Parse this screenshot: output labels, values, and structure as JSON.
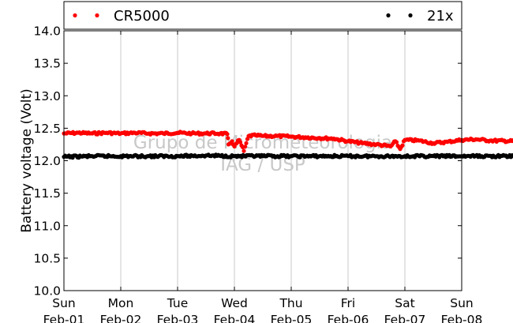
{
  "chart_data": {
    "type": "scatter",
    "ylabel": "Battery voltage (Volt)",
    "ylim": [
      10.0,
      14.0
    ],
    "yticks": [
      "10.0",
      "10.5",
      "11.0",
      "11.5",
      "12.0",
      "12.5",
      "13.0",
      "13.5",
      "14.0"
    ],
    "xlim": [
      "2009-02-01",
      "2009-02-08"
    ],
    "xticks": [
      {
        "day": "Sun",
        "date": "Feb-01"
      },
      {
        "day": "Mon",
        "date": "Feb-02"
      },
      {
        "day": "Tue",
        "date": "Feb-03"
      },
      {
        "day": "Wed",
        "date": "Feb-04"
      },
      {
        "day": "Thu",
        "date": "Feb-05"
      },
      {
        "day": "Fri",
        "date": "Feb-06"
      },
      {
        "day": "Sat",
        "date": "Feb-07"
      },
      {
        "day": "Sun",
        "date": "Feb-08"
      }
    ],
    "grid": "vertical",
    "legend_placement": "top",
    "watermark": [
      "Grupo de Micrometeorologia",
      "IAG / USP"
    ],
    "series": [
      {
        "name": "CR5000",
        "color": "#ff0000",
        "points": [
          [
            "2009-02-01 00:00",
            12.42
          ],
          [
            "2009-02-01 06:00",
            12.43
          ],
          [
            "2009-02-01 12:00",
            12.42
          ],
          [
            "2009-02-01 18:00",
            12.43
          ],
          [
            "2009-02-02 00:00",
            12.42
          ],
          [
            "2009-02-02 06:00",
            12.43
          ],
          [
            "2009-02-02 12:00",
            12.42
          ],
          [
            "2009-02-02 18:00",
            12.42
          ],
          [
            "2009-02-03 00:00",
            12.43
          ],
          [
            "2009-02-03 06:00",
            12.42
          ],
          [
            "2009-02-03 12:00",
            12.42
          ],
          [
            "2009-02-03 18:00",
            12.42
          ],
          [
            "2009-02-03 21:00",
            12.41
          ],
          [
            "2009-02-03 21:30",
            12.25
          ],
          [
            "2009-02-03 23:00",
            12.3
          ],
          [
            "2009-02-04 00:00",
            12.22
          ],
          [
            "2009-02-04 02:00",
            12.32
          ],
          [
            "2009-02-04 04:00",
            12.15
          ],
          [
            "2009-02-04 05:00",
            12.27
          ],
          [
            "2009-02-04 06:00",
            12.38
          ],
          [
            "2009-02-04 09:00",
            12.39
          ],
          [
            "2009-02-04 12:00",
            12.38
          ],
          [
            "2009-02-04 18:00",
            12.38
          ],
          [
            "2009-02-05 00:00",
            12.37
          ],
          [
            "2009-02-05 06:00",
            12.36
          ],
          [
            "2009-02-05 12:00",
            12.35
          ],
          [
            "2009-02-05 18:00",
            12.34
          ],
          [
            "2009-02-06 00:00",
            12.3
          ],
          [
            "2009-02-06 06:00",
            12.27
          ],
          [
            "2009-02-06 12:00",
            12.25
          ],
          [
            "2009-02-06 18:00",
            12.22
          ],
          [
            "2009-02-06 20:00",
            12.3
          ],
          [
            "2009-02-06 22:00",
            12.18
          ],
          [
            "2009-02-07 00:00",
            12.32
          ],
          [
            "2009-02-07 06:00",
            12.31
          ],
          [
            "2009-02-07 12:00",
            12.27
          ],
          [
            "2009-02-07 18:00",
            12.29
          ],
          [
            "2009-02-08 00:00",
            12.32
          ],
          [
            "2009-02-08 06:00",
            12.33
          ],
          [
            "2009-02-08 12:00",
            12.31
          ],
          [
            "2009-02-08 23:59",
            12.3
          ]
        ]
      },
      {
        "name": "21x",
        "color": "#000000",
        "points": [
          [
            "2009-02-01 00:00",
            12.06
          ],
          [
            "2009-02-01 12:00",
            12.07
          ],
          [
            "2009-02-02 00:00",
            12.07
          ],
          [
            "2009-02-02 12:00",
            12.07
          ],
          [
            "2009-02-03 00:00",
            12.07
          ],
          [
            "2009-02-03 12:00",
            12.08
          ],
          [
            "2009-02-04 00:00",
            12.07
          ],
          [
            "2009-02-04 12:00",
            12.07
          ],
          [
            "2009-02-05 00:00",
            12.07
          ],
          [
            "2009-02-05 12:00",
            12.07
          ],
          [
            "2009-02-06 00:00",
            12.07
          ],
          [
            "2009-02-06 12:00",
            12.07
          ],
          [
            "2009-02-07 00:00",
            12.07
          ],
          [
            "2009-02-07 12:00",
            12.07
          ],
          [
            "2009-02-08 00:00",
            12.07
          ],
          [
            "2009-02-08 23:59",
            12.07
          ]
        ]
      }
    ]
  }
}
